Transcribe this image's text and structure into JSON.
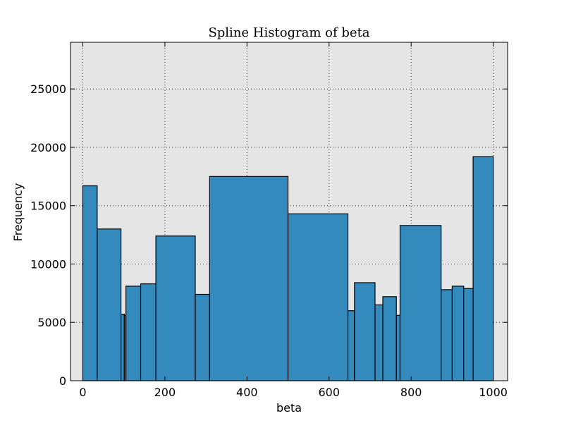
{
  "chart_data": {
    "type": "bar",
    "title": "Spline Histogram of beta",
    "xlabel": "beta",
    "ylabel": "Frequency",
    "xlim": [
      -30,
      1035
    ],
    "ylim": [
      0,
      29000
    ],
    "xticks": [
      0,
      200,
      400,
      600,
      800,
      1000
    ],
    "yticks": [
      0,
      5000,
      10000,
      15000,
      20000,
      25000
    ],
    "grid": true,
    "background_color": "#e5e5e5",
    "bar_color": "#348abd",
    "bins": [
      {
        "left": 0,
        "right": 35,
        "value": 16700
      },
      {
        "left": 35,
        "right": 93,
        "value": 13000
      },
      {
        "left": 93,
        "right": 101,
        "value": 5700
      },
      {
        "left": 101,
        "right": 105,
        "value": 5600
      },
      {
        "left": 105,
        "right": 141,
        "value": 8100
      },
      {
        "left": 141,
        "right": 178,
        "value": 8300
      },
      {
        "left": 178,
        "right": 274,
        "value": 12400
      },
      {
        "left": 274,
        "right": 309,
        "value": 7400
      },
      {
        "left": 309,
        "right": 500,
        "value": 17500
      },
      {
        "left": 500,
        "right": 646,
        "value": 14300
      },
      {
        "left": 646,
        "right": 662,
        "value": 6000
      },
      {
        "left": 662,
        "right": 712,
        "value": 8400
      },
      {
        "left": 712,
        "right": 731,
        "value": 6500
      },
      {
        "left": 731,
        "right": 764,
        "value": 7200
      },
      {
        "left": 764,
        "right": 773,
        "value": 5600
      },
      {
        "left": 773,
        "right": 873,
        "value": 13300
      },
      {
        "left": 873,
        "right": 900,
        "value": 7800
      },
      {
        "left": 900,
        "right": 928,
        "value": 8100
      },
      {
        "left": 928,
        "right": 951,
        "value": 7900
      },
      {
        "left": 951,
        "right": 1000,
        "value": 19200
      }
    ]
  }
}
